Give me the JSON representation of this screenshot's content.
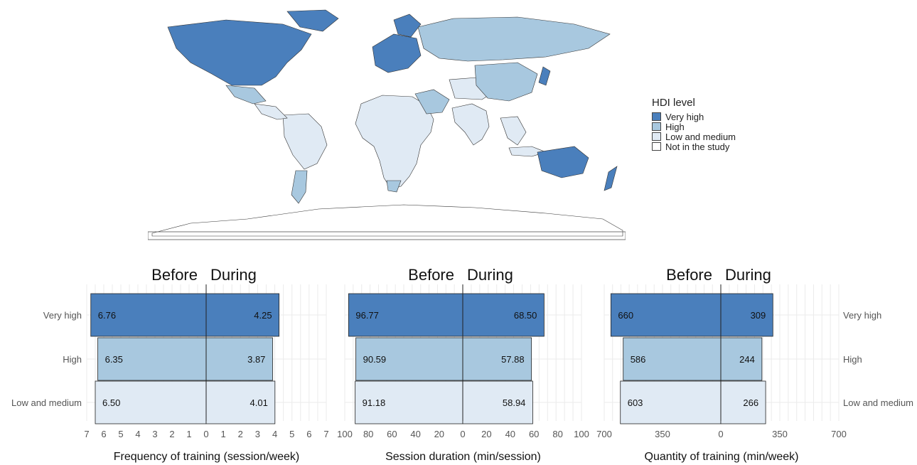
{
  "legend": {
    "title": "HDI level",
    "items": [
      {
        "label": "Very high",
        "color": "#4a7fbc"
      },
      {
        "label": "High",
        "color": "#a8c8df"
      },
      {
        "label": "Low and medium",
        "color": "#e0eaf4"
      },
      {
        "label": "Not in the study",
        "color": "#ffffff"
      }
    ]
  },
  "chart_data": [
    {
      "type": "bar",
      "title": "",
      "xlabel": "Frequency of training (session/week)",
      "side_labels": [
        "Before",
        "During"
      ],
      "categories": [
        "Very high",
        "High",
        "Low and medium"
      ],
      "series": [
        {
          "name": "Before",
          "values": [
            6.76,
            6.35,
            6.5
          ],
          "labels": [
            "6.76",
            "6.35",
            "6.50"
          ]
        },
        {
          "name": "During",
          "values": [
            4.25,
            3.87,
            4.01
          ],
          "labels": [
            "4.25",
            "3.87",
            "4.01"
          ]
        }
      ],
      "xlim_left": 7,
      "xlim_right": 7,
      "left_ticks": [
        7,
        6,
        5,
        4,
        3,
        2,
        1
      ],
      "right_ticks": [
        0,
        1,
        2,
        3,
        4,
        5,
        6,
        7
      ],
      "grid": true
    },
    {
      "type": "bar",
      "title": "",
      "xlabel": "Session duration (min/session)",
      "side_labels": [
        "Before",
        "During"
      ],
      "categories": [
        "Very high",
        "High",
        "Low and medium"
      ],
      "series": [
        {
          "name": "Before",
          "values": [
            96.77,
            90.59,
            91.18
          ],
          "labels": [
            "96.77",
            "90.59",
            "91.18"
          ]
        },
        {
          "name": "During",
          "values": [
            68.5,
            57.88,
            58.94
          ],
          "labels": [
            "68.50",
            "57.88",
            "58.94"
          ]
        }
      ],
      "xlim_left": 100,
      "xlim_right": 100,
      "left_ticks": [
        100,
        80,
        60,
        40,
        20
      ],
      "right_ticks": [
        0,
        20,
        40,
        60,
        80,
        100
      ],
      "grid": true
    },
    {
      "type": "bar",
      "title": "",
      "xlabel": "Quantity of training    (min/week)",
      "side_labels": [
        "Before",
        "During"
      ],
      "categories": [
        "Very high",
        "High",
        "Low and medium"
      ],
      "series": [
        {
          "name": "Before",
          "values": [
            660,
            586,
            603
          ],
          "labels": [
            "660",
            "586",
            "603"
          ]
        },
        {
          "name": "During",
          "values": [
            309,
            244,
            266
          ],
          "labels": [
            "309",
            "244",
            "266"
          ]
        }
      ],
      "xlim_left": 700,
      "xlim_right": 700,
      "left_ticks": [
        700,
        350
      ],
      "right_ticks": [
        0,
        350,
        700
      ],
      "grid": true
    }
  ]
}
